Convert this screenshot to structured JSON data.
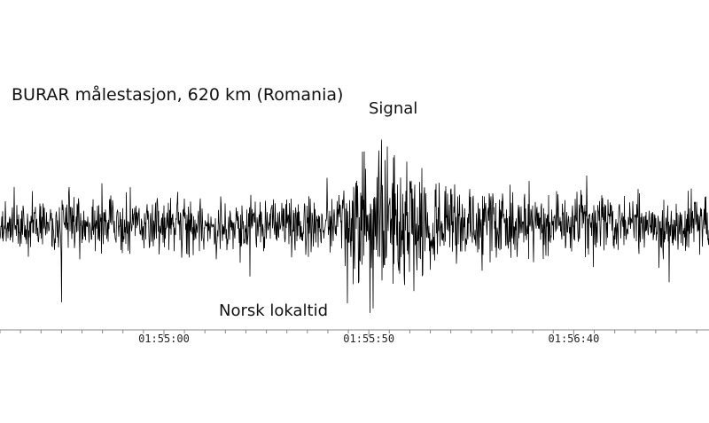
{
  "chart_data": {
    "type": "line",
    "title": "BURAR målestasjon, 620 km (Romania)",
    "annotation": "Signal",
    "xlabel": "Norsk lokaltid",
    "ylabel": "",
    "x_tick_labels": [
      "01:55:00",
      "01:55:50",
      "01:56:40"
    ],
    "x_tick_seconds": [
      0,
      50,
      100
    ],
    "xlim_seconds": [
      -40,
      133
    ],
    "signal_onset_seconds": 46,
    "signal_peak_seconds": 51,
    "series": [
      {
        "values_description": "",
        "color": "#000000"
      }
    ],
    "grid": false,
    "legend": "none"
  }
}
